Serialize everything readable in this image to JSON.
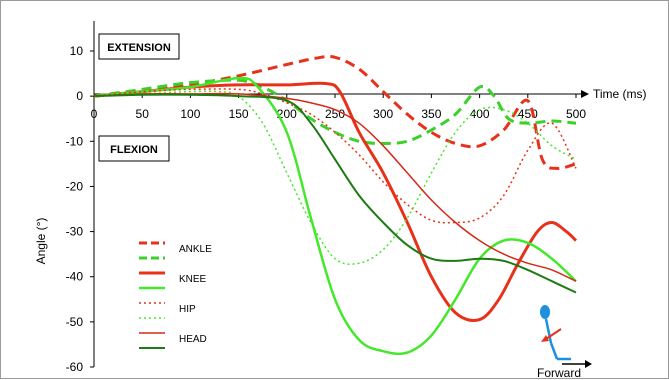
{
  "chart_data": {
    "type": "line",
    "ylabel": "Angle (°)",
    "xlabel": "Time (ms)",
    "xlim": [
      0,
      500
    ],
    "ylim": [
      -60,
      15
    ],
    "xticks": [
      0,
      50,
      100,
      150,
      200,
      250,
      300,
      350,
      400,
      450,
      500
    ],
    "yticks": [
      10,
      0,
      -10,
      -20,
      -30,
      -40,
      -50,
      -60
    ],
    "grid": false,
    "legend_position": "bottom-left",
    "annotations": {
      "extension": "EXTENSION",
      "flexion": "FLEXION",
      "forward": "Forward"
    },
    "legend": [
      {
        "label": "ANKLE",
        "rows": [
          "ankle-1",
          "ankle-2"
        ]
      },
      {
        "label": "KNEE",
        "rows": [
          "knee-1",
          "knee-2"
        ]
      },
      {
        "label": "HIP",
        "rows": [
          "hip-1",
          "hip-2"
        ]
      },
      {
        "label": "HEAD",
        "rows": [
          "head-1",
          "head-2"
        ]
      }
    ],
    "series": [
      {
        "id": "ankle-1",
        "color": "#e8311a",
        "dash": "dashed",
        "width": 3,
        "x": [
          0,
          50,
          100,
          150,
          200,
          230,
          250,
          275,
          300,
          325,
          350,
          375,
          400,
          425,
          450,
          465,
          480,
          500
        ],
        "y": [
          0,
          1,
          2.5,
          4.5,
          7,
          8.4,
          8.6,
          6,
          1,
          -4,
          -8,
          -10.5,
          -11,
          -7.5,
          -1,
          -14,
          -16,
          -15
        ]
      },
      {
        "id": "ankle-2",
        "color": "#3cd02a",
        "dash": "dashed",
        "width": 3,
        "x": [
          0,
          50,
          100,
          150,
          175,
          200,
          225,
          250,
          275,
          300,
          325,
          350,
          375,
          400,
          415,
          430,
          450,
          475,
          500
        ],
        "y": [
          0,
          1.5,
          3,
          3.5,
          2,
          -1,
          -5,
          -8,
          -10,
          -10.5,
          -10,
          -7.5,
          -4,
          2,
          0,
          -5,
          -6,
          -5.5,
          -6
        ]
      },
      {
        "id": "knee-1",
        "color": "#e8311a",
        "dash": "solid",
        "width": 3,
        "x": [
          0,
          50,
          100,
          150,
          200,
          240,
          255,
          275,
          300,
          325,
          350,
          375,
          400,
          420,
          440,
          460,
          475,
          490,
          500
        ],
        "y": [
          0,
          1,
          2,
          2.5,
          2.5,
          2.8,
          1,
          -8,
          -17,
          -28,
          -40,
          -48,
          -49.5,
          -45,
          -37,
          -30,
          -28,
          -30,
          -32
        ]
      },
      {
        "id": "knee-2",
        "color": "#44e82a",
        "dash": "solid",
        "width": 2.5,
        "x": [
          0,
          50,
          100,
          150,
          170,
          200,
          225,
          250,
          275,
          300,
          325,
          350,
          375,
          400,
          425,
          450,
          475,
          500
        ],
        "y": [
          0,
          1,
          2,
          4,
          2,
          -8,
          -27,
          -45,
          -54,
          -56.5,
          -56.8,
          -53,
          -45,
          -36,
          -32,
          -32.5,
          -36,
          -41
        ]
      },
      {
        "id": "hip-1",
        "color": "#e8311a",
        "dash": "dotted",
        "width": 1.5,
        "x": [
          0,
          50,
          100,
          150,
          175,
          200,
          225,
          250,
          275,
          300,
          325,
          350,
          375,
          400,
          425,
          450,
          475,
          500
        ],
        "y": [
          0,
          1,
          1.5,
          1.5,
          0.5,
          -1.5,
          -4,
          -8,
          -13,
          -19,
          -24,
          -27.5,
          -28,
          -27,
          -22,
          -12,
          -6,
          -16
        ]
      },
      {
        "id": "hip-2",
        "color": "#44e82a",
        "dash": "dotted",
        "width": 1.5,
        "x": [
          0,
          50,
          100,
          130,
          150,
          175,
          200,
          225,
          250,
          275,
          300,
          325,
          350,
          375,
          400,
          425,
          450,
          475,
          500
        ],
        "y": [
          0,
          0.5,
          1,
          1,
          0,
          -6,
          -17,
          -28,
          -36,
          -37,
          -34,
          -27,
          -17,
          -8,
          -3,
          -3,
          -6,
          -11,
          -14
        ]
      },
      {
        "id": "head-1",
        "color": "#d42a16",
        "dash": "solid",
        "width": 1.5,
        "x": [
          0,
          50,
          100,
          150,
          200,
          225,
          250,
          275,
          300,
          325,
          350,
          375,
          400,
          425,
          450,
          475,
          500
        ],
        "y": [
          0,
          0.5,
          0.5,
          0.5,
          -0.5,
          -1.5,
          -3,
          -6,
          -11,
          -17,
          -23,
          -28,
          -32,
          -35,
          -37,
          -38.5,
          -41
        ]
      },
      {
        "id": "head-2",
        "color": "#1e7a12",
        "dash": "solid",
        "width": 2,
        "x": [
          0,
          50,
          100,
          150,
          200,
          225,
          250,
          275,
          300,
          325,
          350,
          375,
          400,
          425,
          450,
          475,
          500
        ],
        "y": [
          0,
          0.3,
          0.3,
          0,
          -1,
          -6,
          -14,
          -22,
          -28,
          -33,
          -36,
          -36.5,
          -36,
          -36.5,
          -38.5,
          -41,
          -43.5
        ]
      }
    ]
  }
}
